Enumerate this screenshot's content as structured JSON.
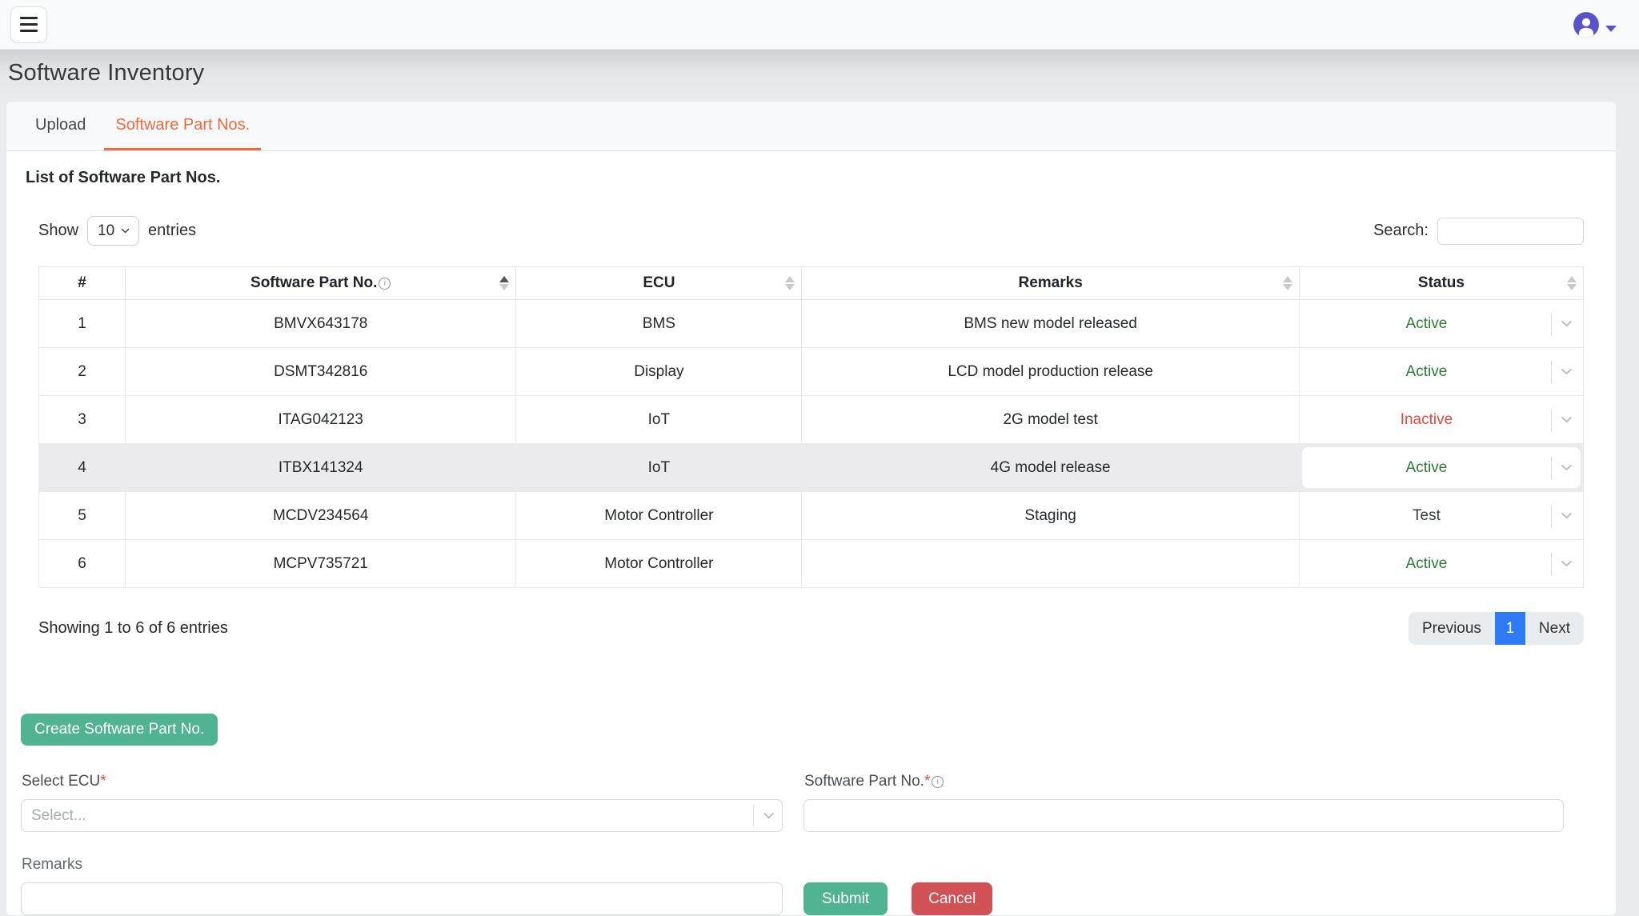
{
  "page_title": "Software Inventory",
  "navbar": {
    "icons": {
      "menu": "menu-icon",
      "user": "user-avatar-icon",
      "caret": "caret-down-icon"
    }
  },
  "tabs": [
    {
      "label": "Upload",
      "active": false
    },
    {
      "label": "Software Part Nos.",
      "active": true
    }
  ],
  "section": {
    "heading": "List of Software Part Nos.",
    "show_label": "Show",
    "page_size": "10",
    "entries_label": "entries",
    "search_label": "Search:",
    "search_value": "",
    "summary": "Showing 1 to 6 of 6 entries",
    "pagination": {
      "previous": "Previous",
      "page": "1",
      "next": "Next"
    }
  },
  "table": {
    "columns": [
      {
        "label": "#",
        "sortable": false
      },
      {
        "label": "Software Part No.",
        "info": true,
        "sortable": true,
        "sorted": "asc"
      },
      {
        "label": "ECU",
        "sortable": true
      },
      {
        "label": "Remarks",
        "sortable": true
      },
      {
        "label": "Status",
        "sortable": true
      }
    ],
    "rows": [
      {
        "num": "1",
        "part_no": "BMVX643178",
        "ecu": "BMS",
        "remarks": "BMS new model released",
        "status": "Active",
        "status_type": "active",
        "highlight": false
      },
      {
        "num": "2",
        "part_no": "DSMT342816",
        "ecu": "Display",
        "remarks": "LCD model production release",
        "status": "Active",
        "status_type": "active",
        "highlight": false
      },
      {
        "num": "3",
        "part_no": "ITAG042123",
        "ecu": "IoT",
        "remarks": "2G model test",
        "status": "Inactive",
        "status_type": "inactive",
        "highlight": false
      },
      {
        "num": "4",
        "part_no": "ITBX141324",
        "ecu": "IoT",
        "remarks": "4G model release",
        "status": "Active",
        "status_type": "active",
        "highlight": true
      },
      {
        "num": "5",
        "part_no": "MCDV234564",
        "ecu": "Motor Controller",
        "remarks": "Staging",
        "status": "Test",
        "status_type": "test",
        "highlight": false
      },
      {
        "num": "6",
        "part_no": "MCPV735721",
        "ecu": "Motor Controller",
        "remarks": "",
        "status": "Active",
        "status_type": "active",
        "highlight": false
      }
    ]
  },
  "create_button_label": "Create Software Part No.",
  "form": {
    "ecu_label": "Select ECU",
    "required_marker": "*",
    "ecu_placeholder": "Select...",
    "part_no_label": "Software Part No.",
    "part_no_value": "",
    "remarks_label": "Remarks",
    "remarks_value": "",
    "submit_label": "Submit",
    "cancel_label": "Cancel"
  },
  "icons": {
    "info_glyph": "i"
  },
  "colors": {
    "accent_orange": "#f4683d",
    "avatar_indigo": "#5b51cb",
    "pagination_blue": "#2f7bf5",
    "button_teal": "#50b492",
    "button_red": "#d15254",
    "status": {
      "active": "#2e7d32",
      "inactive": "#e5473d",
      "test": "#3c4044"
    }
  }
}
